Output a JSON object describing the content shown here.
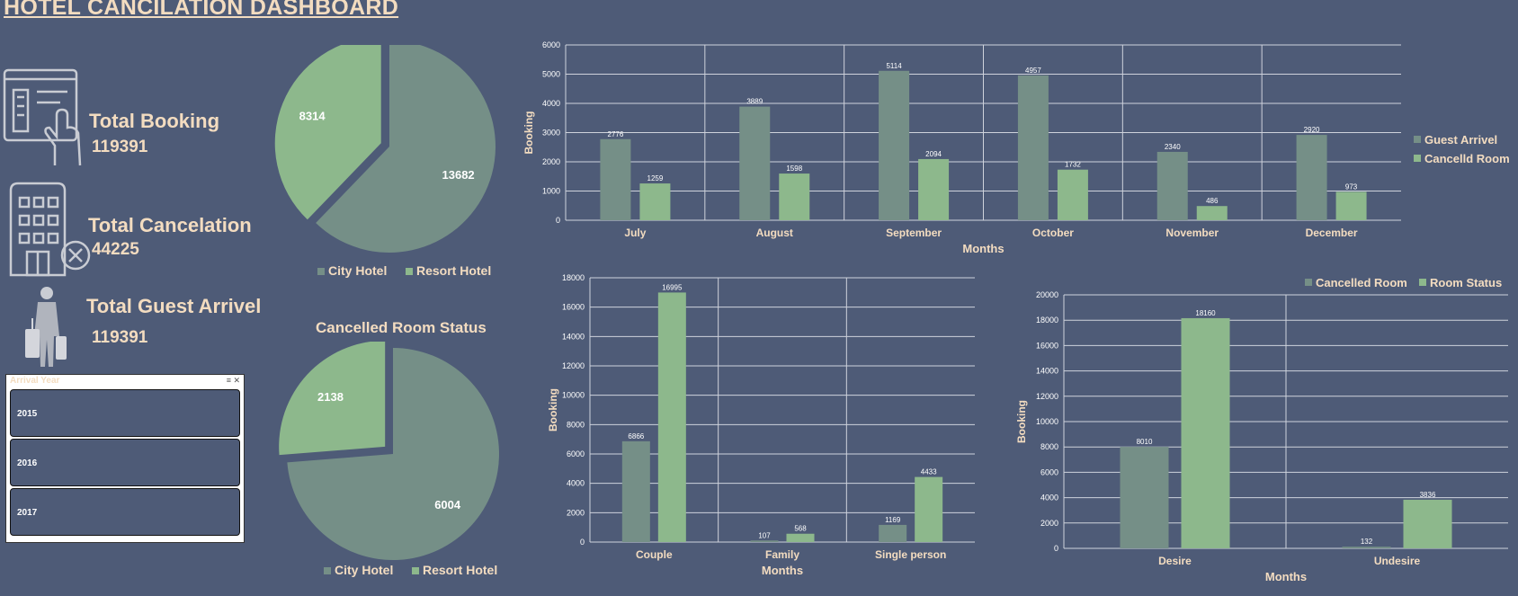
{
  "title": "HOTEL CANCILATION DASHBOARD",
  "kpis": {
    "booking": {
      "label": "Total  Booking",
      "value": "119391"
    },
    "cancelation": {
      "label": "Total Cancelation",
      "value": "44225"
    },
    "arrival": {
      "label": "Total Guest Arrivel",
      "value": "119391"
    }
  },
  "icons": [
    "hotel-booking-icon",
    "hotel-building-cancel-icon",
    "traveler-luggage-icon"
  ],
  "slicer": {
    "header": "Arrival Year",
    "icons": "≡ ✕",
    "items": [
      "2015",
      "2016",
      "2017"
    ]
  },
  "colors": {
    "background": "#4e5b77",
    "city_hotel": "#758f87",
    "resort_hotel": "#8db88c",
    "text": "#f3dcc0"
  },
  "chart_data": [
    {
      "id": "booking-pie",
      "type": "pie",
      "title": "",
      "slices": [
        {
          "name": "City Hotel",
          "value": 13682
        },
        {
          "name": "Resort Hotel",
          "value": 8314
        }
      ],
      "legend": "bottom"
    },
    {
      "id": "cancel-pie",
      "type": "pie",
      "title": "Cancelled Room  Status",
      "slices": [
        {
          "name": "City Hotel",
          "value": 6004
        },
        {
          "name": "Resort Hotel",
          "value": 2138
        }
      ],
      "legend": "bottom"
    },
    {
      "id": "months-bar",
      "type": "bar",
      "categories": [
        "July",
        "August",
        "September",
        "October",
        "November",
        "December"
      ],
      "series": [
        {
          "name": "Guest Arrivel",
          "values": [
            2776,
            3889,
            5114,
            4957,
            2340,
            2920
          ]
        },
        {
          "name": "Cancelld Room",
          "values": [
            1259,
            1598,
            2094,
            1732,
            486,
            973
          ]
        }
      ],
      "xlabel": "Months",
      "ylabel": "Booking",
      "ylim": [
        0,
        6000
      ],
      "yticks": [
        "0",
        "1000",
        "2000",
        "3000",
        "4000",
        "5000",
        "6000"
      ],
      "legend": "right",
      "grid": true
    },
    {
      "id": "customer-bar",
      "type": "bar",
      "categories": [
        "Couple",
        "Family",
        "Single person"
      ],
      "series": [
        {
          "values": [
            6866,
            107,
            1169
          ]
        },
        {
          "values": [
            16995,
            568,
            4433
          ]
        }
      ],
      "xlabel": "Months",
      "ylabel": "Booking",
      "ylim": [
        0,
        18000
      ],
      "yticks": [
        "0",
        "2000",
        "4000",
        "6000",
        "8000",
        "10000",
        "12000",
        "14000",
        "16000",
        "18000"
      ],
      "grid": true
    },
    {
      "id": "room-bar",
      "type": "bar",
      "categories": [
        "Desire",
        "Undesire"
      ],
      "series": [
        {
          "name": "Cancelled Room",
          "values": [
            8010,
            132
          ]
        },
        {
          "name": "Room Status",
          "values": [
            18160,
            3836
          ]
        }
      ],
      "xlabel": "Months",
      "ylabel": "Booking",
      "ylim": [
        0,
        20000
      ],
      "yticks": [
        "0",
        "2000",
        "4000",
        "6000",
        "8000",
        "10000",
        "12000",
        "14000",
        "16000",
        "18000",
        "20000"
      ],
      "legend": "top-right",
      "grid": true
    }
  ]
}
